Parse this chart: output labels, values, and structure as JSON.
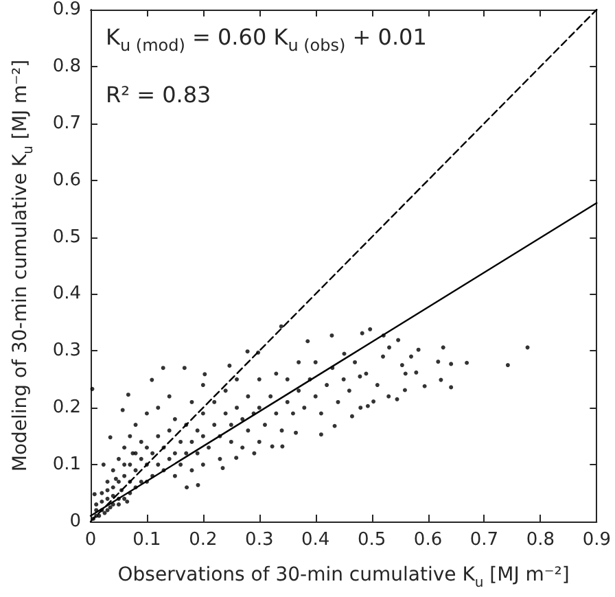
{
  "chart_data": {
    "type": "scatter",
    "xlabel": "Observations of 30-min cumulative K$_{u}$ [MJ m⁻²]",
    "ylabel": "Modeling of 30-min cumulative K$_{u}$ [MJ m⁻²]",
    "annotations": [
      "K$_{u (mod)}$ = 0.60 K$_{u (obs)}$ + 0.01",
      "R² = 0.83"
    ],
    "xlim": [
      0,
      0.9
    ],
    "xticks": [
      0,
      0.1,
      0.2,
      0.3,
      0.4,
      0.5,
      0.6,
      0.7,
      0.8,
      0.9
    ],
    "ylim": [
      0,
      0.9
    ],
    "yticks": [
      0,
      0.1,
      0.2,
      0.3,
      0.4,
      0.5,
      0.6,
      0.7,
      0.8,
      0.9
    ],
    "series": [
      {
        "color": "#000000",
        "marker": "circle",
        "x": [
          0.003,
          0.777,
          0.742,
          0.669,
          0.641,
          0.627,
          0.641,
          0.623,
          0.618,
          0.594,
          0.583,
          0.579,
          0.547,
          0.531,
          0.545,
          0.559,
          0.554,
          0.497,
          0.483,
          0.521,
          0.503,
          0.493,
          0.465,
          0.434,
          0.41,
          0.429,
          0.386,
          0.479,
          0.451,
          0.365,
          0.341,
          0.323,
          0.291,
          0.259,
          0.235,
          0.191,
          0.171,
          0.167,
          0.129,
          0.109,
          0.067,
          0.057,
          0.035,
          0.023,
          0.007,
          0.339,
          0.298,
          0.279,
          0.247,
          0.203,
          0.01,
          0.01,
          0.02,
          0.02,
          0.03,
          0.03,
          0.03,
          0.04,
          0.04,
          0.04,
          0.05,
          0.05,
          0.05,
          0.06,
          0.06,
          0.06,
          0.07,
          0.07,
          0.07,
          0.08,
          0.08,
          0.08,
          0.08,
          0.09,
          0.09,
          0.09,
          0.1,
          0.1,
          0.1,
          0.1,
          0.11,
          0.11,
          0.12,
          0.12,
          0.12,
          0.13,
          0.13,
          0.14,
          0.14,
          0.14,
          0.15,
          0.15,
          0.15,
          0.16,
          0.16,
          0.17,
          0.17,
          0.18,
          0.18,
          0.18,
          0.19,
          0.19,
          0.2,
          0.2,
          0.2,
          0.2,
          0.21,
          0.22,
          0.22,
          0.23,
          0.23,
          0.24,
          0.24,
          0.25,
          0.25,
          0.26,
          0.26,
          0.27,
          0.27,
          0.28,
          0.28,
          0.29,
          0.3,
          0.3,
          0.3,
          0.31,
          0.32,
          0.33,
          0.33,
          0.34,
          0.35,
          0.35,
          0.36,
          0.37,
          0.37,
          0.38,
          0.39,
          0.4,
          0.4,
          0.41,
          0.42,
          0.43,
          0.44,
          0.45,
          0.46,
          0.47,
          0.48,
          0.49,
          0.51,
          0.52,
          0.53,
          0.56,
          0.57,
          0.005,
          0.01,
          0.015,
          0.02,
          0.025,
          0.03,
          0.035,
          0.04,
          0.045,
          0.05,
          0.055,
          0.06,
          0.065,
          0.07,
          0.075
        ],
        "values": [
          0.233,
          0.306,
          0.275,
          0.279,
          0.277,
          0.306,
          0.236,
          0.249,
          0.281,
          0.238,
          0.302,
          0.262,
          0.319,
          0.306,
          0.215,
          0.231,
          0.275,
          0.338,
          0.331,
          0.327,
          0.211,
          0.203,
          0.185,
          0.168,
          0.153,
          0.327,
          0.317,
          0.255,
          0.295,
          0.156,
          0.132,
          0.132,
          0.12,
          0.112,
          0.094,
          0.064,
          0.06,
          0.27,
          0.27,
          0.249,
          0.223,
          0.196,
          0.148,
          0.1,
          0.048,
          0.343,
          0.297,
          0.299,
          0.274,
          0.259,
          0.01,
          0.03,
          0.02,
          0.05,
          0.02,
          0.04,
          0.07,
          0.03,
          0.06,
          0.09,
          0.04,
          0.07,
          0.11,
          0.04,
          0.08,
          0.13,
          0.05,
          0.1,
          0.15,
          0.06,
          0.09,
          0.12,
          0.17,
          0.07,
          0.11,
          0.14,
          0.07,
          0.1,
          0.13,
          0.19,
          0.08,
          0.12,
          0.1,
          0.15,
          0.2,
          0.09,
          0.13,
          0.11,
          0.16,
          0.22,
          0.08,
          0.12,
          0.18,
          0.1,
          0.14,
          0.12,
          0.17,
          0.09,
          0.14,
          0.21,
          0.12,
          0.16,
          0.1,
          0.15,
          0.19,
          0.24,
          0.13,
          0.17,
          0.21,
          0.11,
          0.15,
          0.19,
          0.23,
          0.14,
          0.17,
          0.2,
          0.25,
          0.13,
          0.18,
          0.16,
          0.22,
          0.19,
          0.14,
          0.2,
          0.25,
          0.17,
          0.22,
          0.19,
          0.26,
          0.16,
          0.21,
          0.25,
          0.19,
          0.23,
          0.28,
          0.2,
          0.25,
          0.22,
          0.28,
          0.19,
          0.24,
          0.27,
          0.21,
          0.25,
          0.23,
          0.28,
          0.2,
          0.26,
          0.24,
          0.29,
          0.22,
          0.26,
          0.29,
          0.005,
          0.02,
          0.01,
          0.035,
          0.015,
          0.055,
          0.025,
          0.045,
          0.075,
          0.03,
          0.055,
          0.1,
          0.035,
          0.07,
          0.12
        ]
      },
      {
        "type": "line",
        "color": "#000000",
        "marker": "none",
        "line_style": "dashed",
        "x": [
          0,
          0.9
        ],
        "values": [
          0,
          0.9
        ]
      },
      {
        "type": "line",
        "color": "#000000",
        "marker": "none",
        "line_style": "solid",
        "x": [
          0,
          0.9
        ],
        "values": [
          0.01,
          0.56
        ]
      }
    ]
  }
}
